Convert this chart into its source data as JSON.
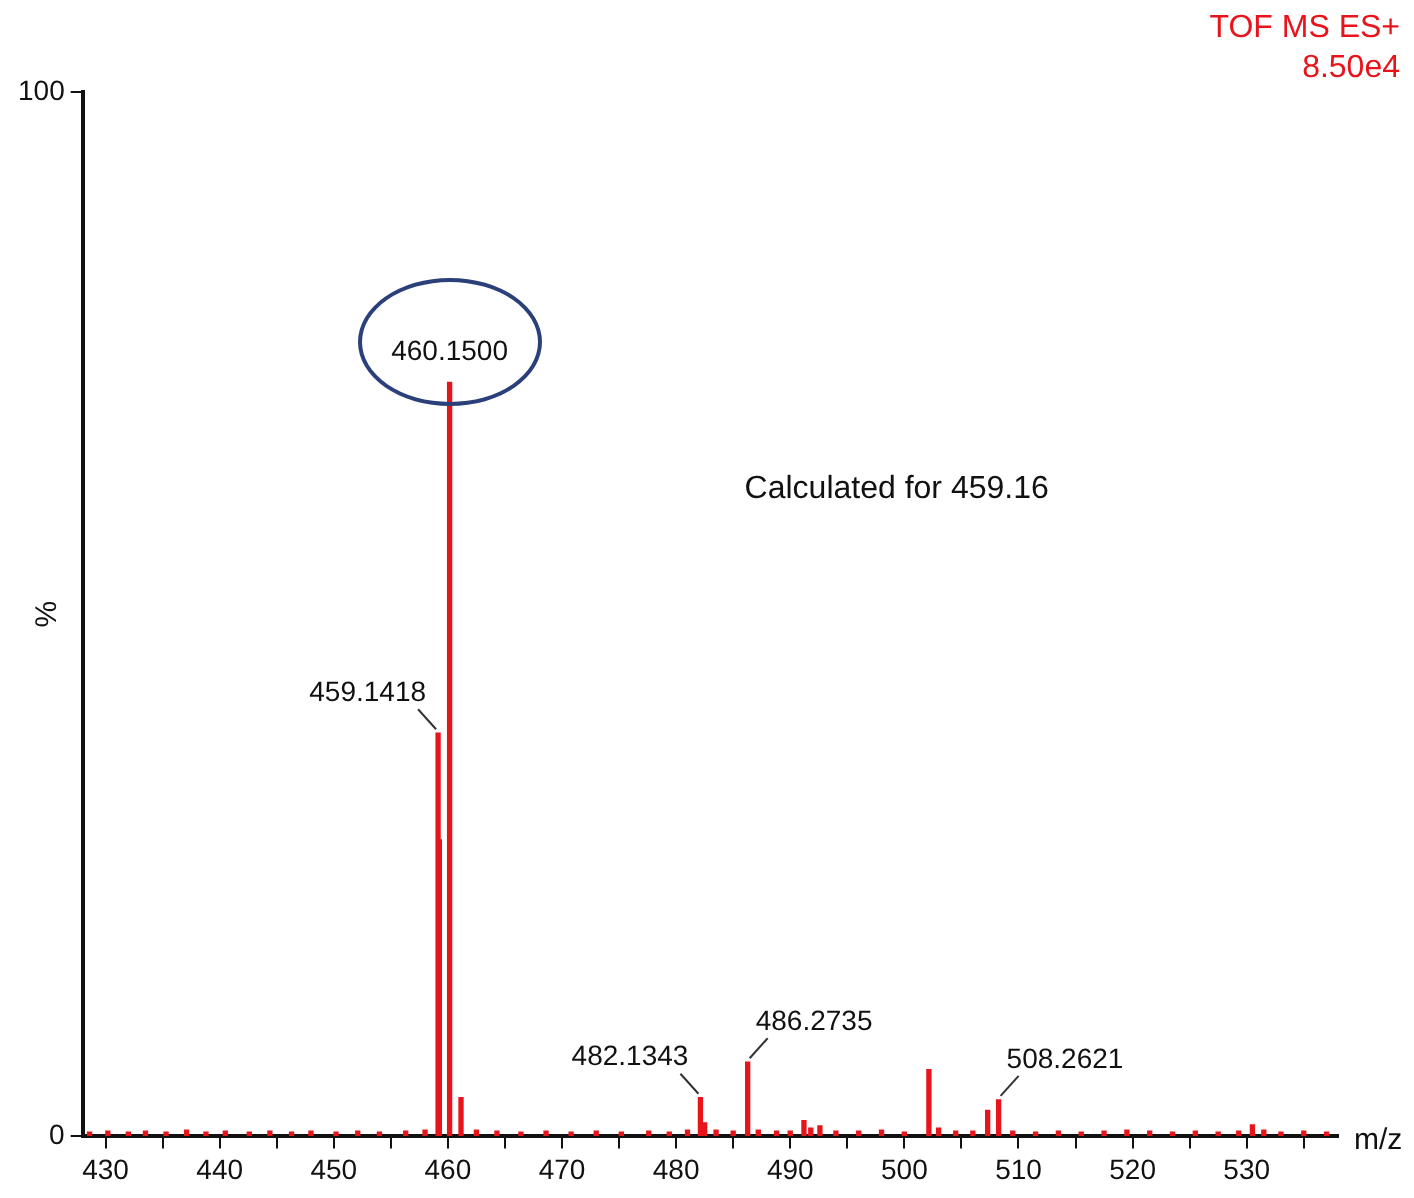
{
  "chart_data": {
    "type": "bar",
    "title": "TOF MS ES+",
    "subtitle": "8.50e4",
    "xlabel": "m/z",
    "ylabel": "%",
    "x": [
      428.6,
      430.2,
      432.0,
      433.5,
      435.3,
      437.1,
      438.8,
      440.5,
      442.6,
      444.4,
      446.3,
      448.0,
      450.2,
      452.1,
      454.0,
      456.3,
      458.0,
      459.14,
      459.25,
      460.15,
      461.15,
      462.5,
      464.3,
      466.4,
      468.6,
      470.8,
      473.0,
      475.2,
      477.6,
      479.4,
      481.0,
      482.13,
      482.5,
      483.5,
      485.0,
      486.27,
      487.2,
      488.8,
      490.0,
      491.2,
      491.8,
      492.6,
      494.0,
      496.0,
      498.0,
      500.0,
      502.15,
      503.0,
      504.5,
      506.0,
      507.3,
      508.26,
      509.5,
      511.5,
      513.5,
      515.5,
      517.5,
      519.5,
      521.5,
      523.5,
      525.5,
      527.5,
      529.3,
      530.5,
      531.5,
      533.0,
      535.0,
      537.0
    ],
    "values": [
      0.4,
      0.5,
      0.4,
      0.5,
      0.4,
      0.6,
      0.4,
      0.5,
      0.4,
      0.5,
      0.4,
      0.5,
      0.4,
      0.5,
      0.4,
      0.5,
      0.6,
      38.6,
      28.4,
      72.2,
      3.7,
      0.6,
      0.5,
      0.4,
      0.5,
      0.4,
      0.5,
      0.4,
      0.5,
      0.4,
      0.6,
      3.7,
      1.3,
      0.6,
      0.5,
      7.1,
      0.6,
      0.5,
      0.5,
      1.5,
      0.8,
      1.0,
      0.5,
      0.5,
      0.6,
      0.4,
      6.4,
      0.8,
      0.5,
      0.5,
      2.5,
      3.5,
      0.5,
      0.4,
      0.5,
      0.4,
      0.5,
      0.6,
      0.5,
      0.4,
      0.5,
      0.4,
      0.5,
      1.1,
      0.6,
      0.4,
      0.5,
      0.4
    ],
    "color": "#e8141c",
    "xlim": [
      428,
      538
    ],
    "xticks": [
      430,
      {
        "value": 435,
        "label": null
      },
      440,
      {
        "value": 445,
        "label": null
      },
      450,
      {
        "value": 455,
        "label": null
      },
      460,
      {
        "value": 465,
        "label": null
      },
      470,
      {
        "value": 475,
        "label": null
      },
      480,
      {
        "value": 485,
        "label": null
      },
      490,
      {
        "value": 495,
        "label": null
      },
      500,
      {
        "value": 505,
        "label": null
      },
      510,
      {
        "value": 515,
        "label": null
      },
      520,
      {
        "value": 525,
        "label": null
      },
      530,
      {
        "value": 535,
        "label": null
      }
    ],
    "ylim": [
      0,
      100
    ],
    "yticks": [
      0,
      100
    ],
    "grid": false,
    "legend": false,
    "annotations": [
      {
        "text": "460.1500",
        "x": 460.15,
        "y": 72.2
      },
      {
        "text": "459.1418",
        "x": 459.14,
        "y": 38.6
      },
      {
        "text": "482.1343",
        "x": 482.13,
        "y": 3.7
      },
      {
        "text": "486.2735",
        "x": 486.27,
        "y": 7.1
      },
      {
        "text": "508.2621",
        "x": 508.26,
        "y": 3.5
      },
      "Calculated for 459.16"
    ]
  }
}
